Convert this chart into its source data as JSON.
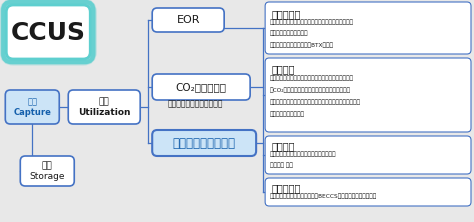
{
  "bg_color": "#e8e8e8",
  "white": "#ffffff",
  "blue_border": "#4472c4",
  "light_blue_bg": "#cce4f7",
  "cyan_glow": "#5ecfcf",
  "carbon_blue": "#1560ac",
  "text_dark": "#1a1a1a",
  "ccus_label": "CCUS",
  "capture_label": "回収\nCapture",
  "utilization_label": "利用\nUtilization",
  "storage_label": "貯留\nStorage",
  "eor_label": "EOR",
  "co2_label": "CO₂の直接利用",
  "co2_sub": "（溶接・ドライアイス等）",
  "carbon_label": "カーボンリサイクル",
  "box1_title": "１．化学品",
  "box1_lines": [
    "・含酸素化合物（ポリカーボネート、ウレタンなど）",
    "・バイオマス由来化学品",
    "・汎用物質（オレフィン、BTXなど）"
  ],
  "box2_title": "２．燃料",
  "box2_lines": [
    "・微細藻類バイオ燃料（ジェット燃料・ディーゼル）",
    "・CO₂由来燃料またはバイオ燃料（微細藻類由来",
    "　を除く）（メタノール、エタノール、ディーゼルなど）",
    "・ガス燃料（メタン）"
  ],
  "box3_title": "３．鉱物",
  "box3_lines": [
    "・コンクリート製品・コンクリート構造物",
    "・炭酸塩 など"
  ],
  "box4_title": "４．その他",
  "box4_lines": [
    "・ネガティブ・エミッション（BECCS、ブルーカーボンなど）"
  ]
}
